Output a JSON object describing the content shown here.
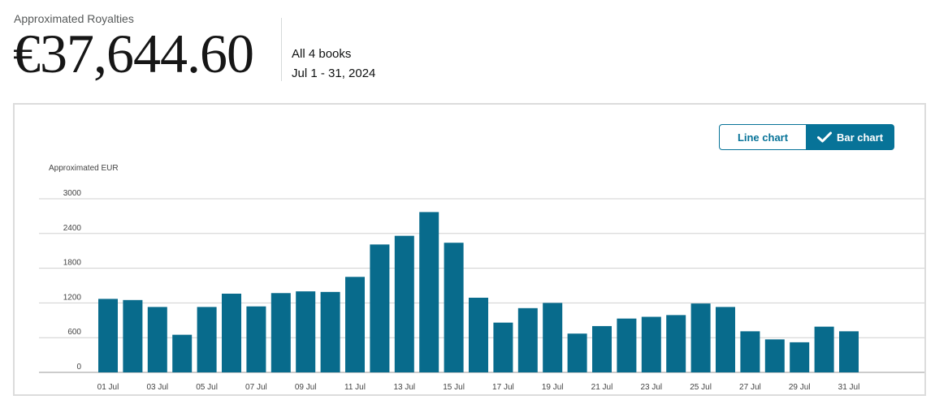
{
  "header": {
    "label": "Approximated Royalties",
    "amount": "€37,644.60",
    "scope": "All 4 books",
    "period": "Jul 1 - 31, 2024"
  },
  "toggles": {
    "line_label": "Line chart",
    "bar_label": "Bar chart",
    "selected": "bar"
  },
  "colors": {
    "bar": "#086b8c",
    "accent": "#077398"
  },
  "chart_data": {
    "type": "bar",
    "ylabel": "Approximated EUR",
    "ylim": [
      0,
      3000
    ],
    "yticks": [
      0,
      600,
      1200,
      1800,
      2400,
      3000
    ],
    "grid": true,
    "categories": [
      "01 Jul",
      "02 Jul",
      "03 Jul",
      "04 Jul",
      "05 Jul",
      "06 Jul",
      "07 Jul",
      "08 Jul",
      "09 Jul",
      "10 Jul",
      "11 Jul",
      "12 Jul",
      "13 Jul",
      "14 Jul",
      "15 Jul",
      "16 Jul",
      "17 Jul",
      "18 Jul",
      "19 Jul",
      "20 Jul",
      "21 Jul",
      "22 Jul",
      "23 Jul",
      "24 Jul",
      "25 Jul",
      "26 Jul",
      "27 Jul",
      "28 Jul",
      "29 Jul",
      "30 Jul",
      "31 Jul"
    ],
    "xtick_labels": [
      "01 Jul",
      "",
      "03 Jul",
      "",
      "05 Jul",
      "",
      "07 Jul",
      "",
      "09 Jul",
      "",
      "11 Jul",
      "",
      "13 Jul",
      "",
      "15 Jul",
      "",
      "17 Jul",
      "",
      "19 Jul",
      "",
      "21 Jul",
      "",
      "23 Jul",
      "",
      "25 Jul",
      "",
      "27 Jul",
      "",
      "29 Jul",
      "",
      "31 Jul"
    ],
    "values": [
      1270,
      1250,
      1130,
      650,
      1130,
      1360,
      1140,
      1370,
      1400,
      1390,
      1650,
      2210,
      2360,
      2770,
      2240,
      1290,
      860,
      1110,
      1200,
      670,
      800,
      930,
      960,
      990,
      1190,
      1130,
      710,
      570,
      520,
      790,
      710
    ]
  }
}
